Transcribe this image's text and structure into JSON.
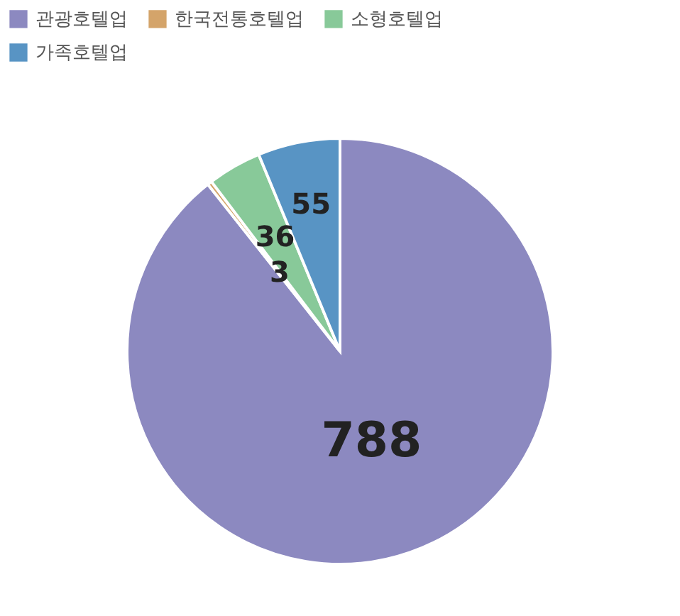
{
  "chart_data": {
    "type": "pie",
    "categories": [
      "관광호텔업",
      "한국전통호텔업",
      "소형호텔업",
      "가족호텔업"
    ],
    "values": [
      788,
      3,
      36,
      55
    ],
    "colors": [
      "#8c89c0",
      "#d4a46a",
      "#88c999",
      "#5894c4"
    ],
    "data_labels": true,
    "legend": "top"
  }
}
